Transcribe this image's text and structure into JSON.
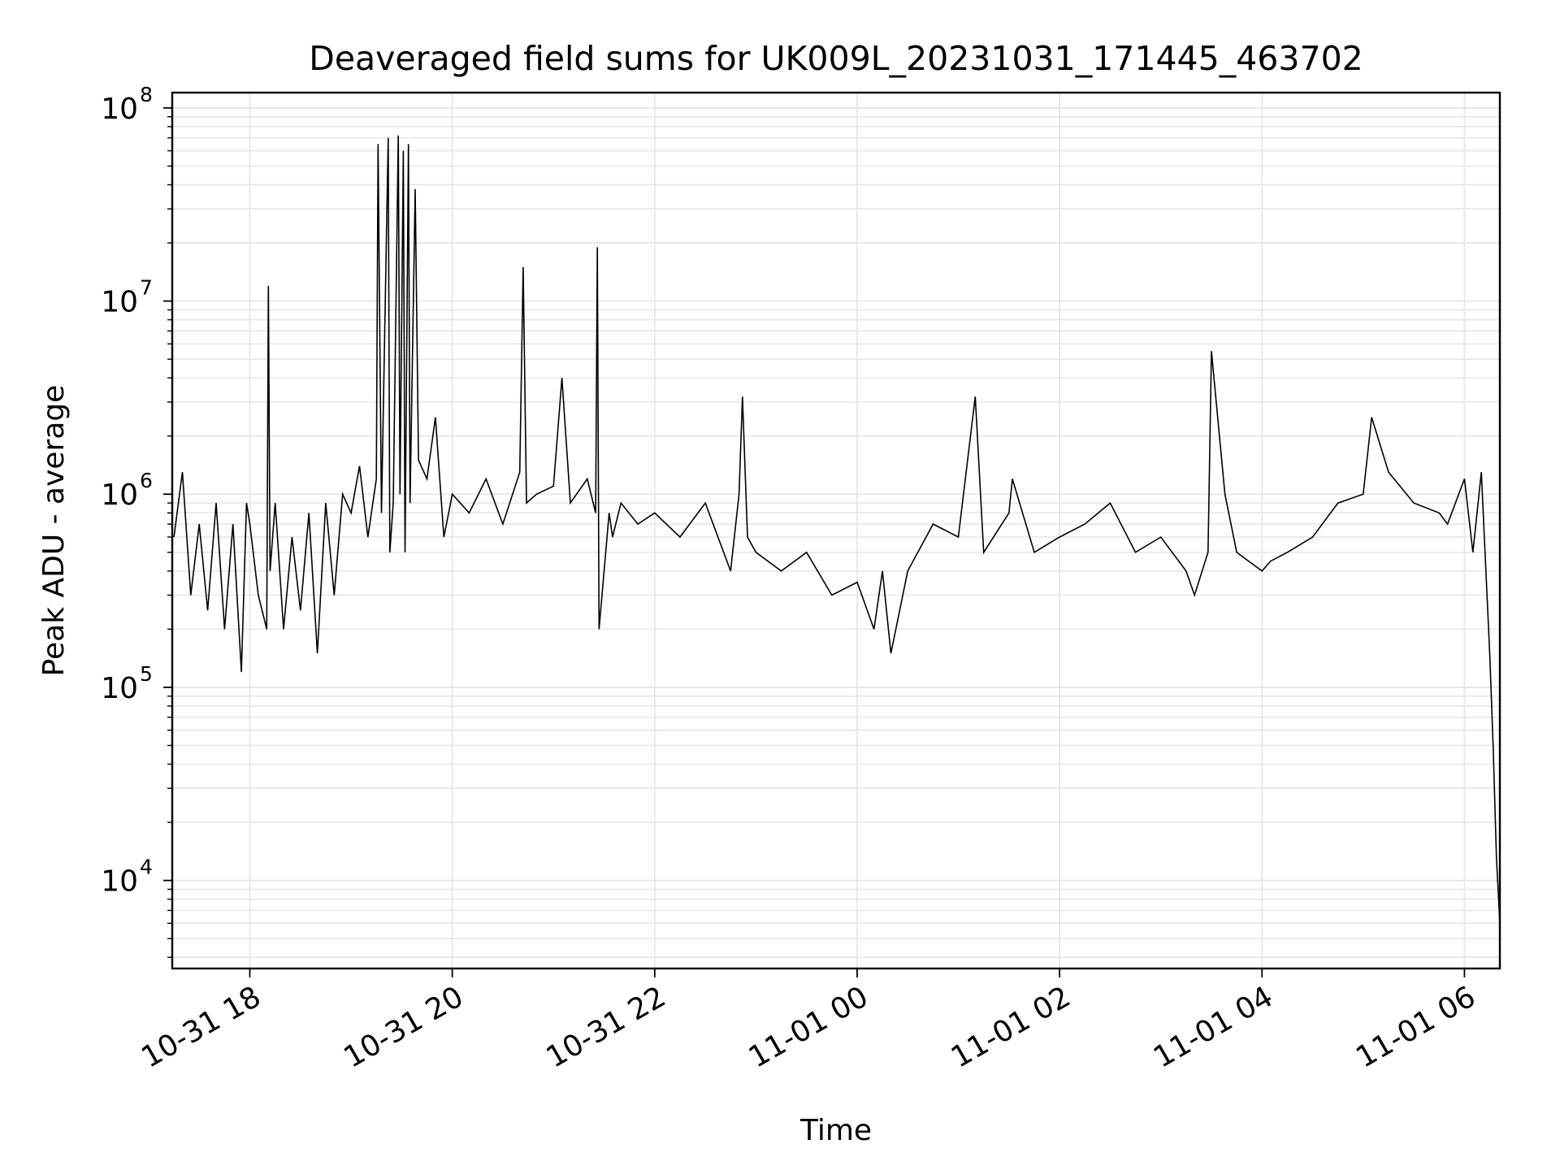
{
  "chart_data": {
    "type": "line",
    "title": "Deaveraged field sums for UK009L_20231031_171445_463702",
    "xlabel": "Time",
    "ylabel": "Peak ADU - average",
    "y_scale": "log",
    "xlim": [
      "2023-10-31 17:14",
      "2023-11-01 06:21"
    ],
    "ylim": [
      3500,
      120000000
    ],
    "grid": true,
    "line_color": "#000000",
    "x_ticks": [
      {
        "value": "2023-10-31 18:00",
        "label": "10-31 18"
      },
      {
        "value": "2023-10-31 20:00",
        "label": "10-31 20"
      },
      {
        "value": "2023-10-31 22:00",
        "label": "10-31 22"
      },
      {
        "value": "2023-11-01 00:00",
        "label": "11-01 00"
      },
      {
        "value": "2023-11-01 02:00",
        "label": "11-01 02"
      },
      {
        "value": "2023-11-01 04:00",
        "label": "11-01 04"
      },
      {
        "value": "2023-11-01 06:00",
        "label": "11-01 06"
      }
    ],
    "y_ticks": [
      {
        "value": 10000,
        "base": "10",
        "exp": "4"
      },
      {
        "value": 100000,
        "base": "10",
        "exp": "5"
      },
      {
        "value": 1000000,
        "base": "10",
        "exp": "6"
      },
      {
        "value": 10000000,
        "base": "10",
        "exp": "7"
      },
      {
        "value": 100000000,
        "base": "10",
        "exp": "8"
      }
    ],
    "series": [
      {
        "x": [
          "2023-10-31 17:15",
          "2023-10-31 17:20",
          "2023-10-31 17:25",
          "2023-10-31 17:30",
          "2023-10-31 17:35",
          "2023-10-31 17:40",
          "2023-10-31 17:45",
          "2023-10-31 17:50",
          "2023-10-31 17:55",
          "2023-10-31 17:58",
          "2023-10-31 18:00",
          "2023-10-31 18:05",
          "2023-10-31 18:10",
          "2023-10-31 18:11",
          "2023-10-31 18:12",
          "2023-10-31 18:15",
          "2023-10-31 18:20",
          "2023-10-31 18:25",
          "2023-10-31 18:30",
          "2023-10-31 18:35",
          "2023-10-31 18:40",
          "2023-10-31 18:45",
          "2023-10-31 18:50",
          "2023-10-31 18:55",
          "2023-10-31 19:00",
          "2023-10-31 19:05",
          "2023-10-31 19:10",
          "2023-10-31 19:15",
          "2023-10-31 19:16",
          "2023-10-31 19:18",
          "2023-10-31 19:22",
          "2023-10-31 19:23",
          "2023-10-31 19:25",
          "2023-10-31 19:28",
          "2023-10-31 19:29",
          "2023-10-31 19:31",
          "2023-10-31 19:32",
          "2023-10-31 19:34",
          "2023-10-31 19:35",
          "2023-10-31 19:38",
          "2023-10-31 19:40",
          "2023-10-31 19:45",
          "2023-10-31 19:50",
          "2023-10-31 19:55",
          "2023-10-31 20:00",
          "2023-10-31 20:10",
          "2023-10-31 20:20",
          "2023-10-31 20:30",
          "2023-10-31 20:40",
          "2023-10-31 20:42",
          "2023-10-31 20:44",
          "2023-10-31 20:50",
          "2023-10-31 21:00",
          "2023-10-31 21:05",
          "2023-10-31 21:10",
          "2023-10-31 21:20",
          "2023-10-31 21:25",
          "2023-10-31 21:26",
          "2023-10-31 21:27",
          "2023-10-31 21:30",
          "2023-10-31 21:33",
          "2023-10-31 21:35",
          "2023-10-31 21:40",
          "2023-10-31 21:50",
          "2023-10-31 22:00",
          "2023-10-31 22:15",
          "2023-10-31 22:30",
          "2023-10-31 22:45",
          "2023-10-31 22:50",
          "2023-10-31 22:52",
          "2023-10-31 22:55",
          "2023-10-31 23:00",
          "2023-10-31 23:15",
          "2023-10-31 23:30",
          "2023-10-31 23:45",
          "2023-11-01 00:00",
          "2023-11-01 00:10",
          "2023-11-01 00:15",
          "2023-11-01 00:20",
          "2023-11-01 00:30",
          "2023-11-01 00:45",
          "2023-11-01 01:00",
          "2023-11-01 01:10",
          "2023-11-01 01:15",
          "2023-11-01 01:30",
          "2023-11-01 01:32",
          "2023-11-01 01:45",
          "2023-11-01 02:00",
          "2023-11-01 02:15",
          "2023-11-01 02:30",
          "2023-11-01 02:45",
          "2023-11-01 03:00",
          "2023-11-01 03:15",
          "2023-11-01 03:20",
          "2023-11-01 03:28",
          "2023-11-01 03:30",
          "2023-11-01 03:38",
          "2023-11-01 03:45",
          "2023-11-01 04:00",
          "2023-11-01 04:05",
          "2023-11-01 04:15",
          "2023-11-01 04:30",
          "2023-11-01 04:45",
          "2023-11-01 05:00",
          "2023-11-01 05:05",
          "2023-11-01 05:15",
          "2023-11-01 05:30",
          "2023-11-01 05:45",
          "2023-11-01 05:50",
          "2023-11-01 06:00",
          "2023-11-01 06:05",
          "2023-11-01 06:10",
          "2023-11-01 06:15",
          "2023-11-01 06:17",
          "2023-11-01 06:19",
          "2023-11-01 06:21"
        ],
        "y": [
          600000,
          1300000,
          300000,
          700000,
          250000,
          900000,
          200000,
          700000,
          120000,
          900000,
          700000,
          300000,
          200000,
          12000000,
          400000,
          900000,
          200000,
          600000,
          250000,
          800000,
          150000,
          900000,
          300000,
          1000000,
          800000,
          1400000,
          600000,
          1200000,
          65000000,
          800000,
          70000000,
          500000,
          900000,
          72000000,
          1000000,
          60000000,
          500000,
          65000000,
          900000,
          38000000,
          1500000,
          1200000,
          2500000,
          600000,
          1000000,
          800000,
          1200000,
          700000,
          1300000,
          15000000,
          900000,
          1000000,
          1100000,
          4000000,
          900000,
          1200000,
          800000,
          19000000,
          200000,
          400000,
          800000,
          600000,
          900000,
          700000,
          800000,
          600000,
          900000,
          400000,
          1000000,
          3200000,
          600000,
          500000,
          400000,
          500000,
          300000,
          350000,
          200000,
          400000,
          150000,
          400000,
          700000,
          600000,
          3200000,
          500000,
          800000,
          1200000,
          500000,
          600000,
          700000,
          900000,
          500000,
          600000,
          400000,
          300000,
          500000,
          5500000,
          1000000,
          500000,
          400000,
          450000,
          500000,
          600000,
          900000,
          1000000,
          2500000,
          1300000,
          900000,
          800000,
          700000,
          1200000,
          500000,
          1300000,
          150000,
          50000,
          13000,
          6000
        ]
      }
    ]
  }
}
